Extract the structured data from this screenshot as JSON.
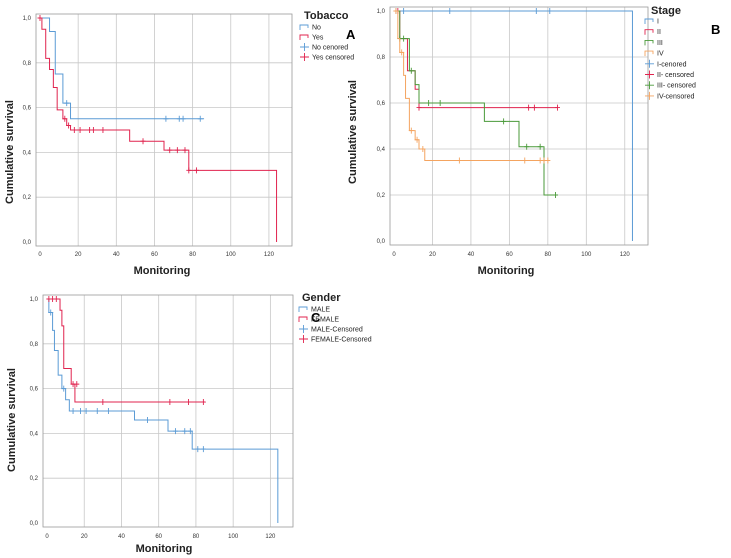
{
  "chart_data": [
    {
      "id": "A",
      "type": "line",
      "panel_label": "A",
      "title": "",
      "xlabel": "Monitoring",
      "ylabel": "Cumulative survival",
      "xlim": [
        0,
        130
      ],
      "ylim": [
        0,
        1
      ],
      "x_ticks": [
        0,
        20,
        40,
        60,
        80,
        100,
        120
      ],
      "y_ticks": [
        "0,0",
        "0,2",
        "0,4",
        "0,6",
        "0,8",
        "1,0"
      ],
      "legend_title": "Tobacco",
      "legend_position": "top-right",
      "legend": [
        {
          "label": "No",
          "color": "#5B9BD5",
          "mark": "step"
        },
        {
          "label": "Yes",
          "color": "#E0234E",
          "mark": "step"
        },
        {
          "label": "No cenored",
          "color": "#5B9BD5",
          "mark": "plus"
        },
        {
          "label": "Yes censored",
          "color": "#E0234E",
          "mark": "plus"
        }
      ],
      "series": [
        {
          "name": "No",
          "color": "#5B9BD5",
          "steps": [
            [
              0,
              1.0
            ],
            [
              5,
              0.94
            ],
            [
              8,
              0.75
            ],
            [
              12,
              0.62
            ],
            [
              16,
              0.55
            ],
            [
              86,
              0.55
            ]
          ],
          "censored": [
            [
              14,
              0.62
            ],
            [
              66,
              0.55
            ],
            [
              73,
              0.55
            ],
            [
              75,
              0.55
            ],
            [
              84,
              0.55
            ]
          ]
        },
        {
          "name": "Yes",
          "color": "#E0234E",
          "steps": [
            [
              0,
              1.0
            ],
            [
              1,
              0.95
            ],
            [
              3,
              0.82
            ],
            [
              5,
              0.77
            ],
            [
              7,
              0.69
            ],
            [
              9,
              0.59
            ],
            [
              12,
              0.55
            ],
            [
              14,
              0.52
            ],
            [
              16,
              0.5
            ],
            [
              47,
              0.45
            ],
            [
              60,
              0.45
            ],
            [
              65,
              0.41
            ],
            [
              78,
              0.32
            ],
            [
              124,
              0.0
            ]
          ],
          "censored": [
            [
              0,
              1.0
            ],
            [
              13,
              0.55
            ],
            [
              15,
              0.52
            ],
            [
              18,
              0.5
            ],
            [
              21,
              0.5
            ],
            [
              26,
              0.5
            ],
            [
              28,
              0.5
            ],
            [
              33,
              0.5
            ],
            [
              54,
              0.45
            ],
            [
              68,
              0.41
            ],
            [
              72,
              0.41
            ],
            [
              76,
              0.41
            ],
            [
              78,
              0.32
            ],
            [
              82,
              0.32
            ]
          ]
        }
      ]
    },
    {
      "id": "B",
      "type": "line",
      "panel_label": "B",
      "title": "",
      "xlabel": "Monitoring",
      "ylabel": "Cumulative survival",
      "xlim": [
        0,
        130
      ],
      "ylim": [
        0,
        1
      ],
      "x_ticks": [
        0,
        20,
        40,
        60,
        80,
        100,
        120
      ],
      "y_ticks": [
        "0,0",
        "0,2",
        "0,4",
        "0,6",
        "0,8",
        "1,0"
      ],
      "legend_title": "Stage",
      "legend_position": "top-right",
      "legend": [
        {
          "label": "I",
          "color": "#5B9BD5",
          "mark": "step"
        },
        {
          "label": "II",
          "color": "#E0234E",
          "mark": "step"
        },
        {
          "label": "III",
          "color": "#4A9A3A",
          "mark": "step"
        },
        {
          "label": "IV",
          "color": "#F4A460",
          "mark": "step"
        },
        {
          "label": "I-cenored",
          "color": "#5B9BD5",
          "mark": "plus"
        },
        {
          "label": "II- censored",
          "color": "#E0234E",
          "mark": "plus"
        },
        {
          "label": "III- censored",
          "color": "#4A9A3A",
          "mark": "plus"
        },
        {
          "label": "IV-censored",
          "color": "#F4A460",
          "mark": "plus"
        }
      ],
      "series": [
        {
          "name": "I",
          "color": "#5B9BD5",
          "steps": [
            [
              0,
              1.0
            ],
            [
              124,
              0.0
            ]
          ],
          "censored": [
            [
              1,
              1.0
            ],
            [
              5,
              1.0
            ],
            [
              29,
              1.0
            ],
            [
              74,
              1.0
            ],
            [
              81,
              1.0
            ]
          ]
        },
        {
          "name": "II",
          "color": "#E0234E",
          "steps": [
            [
              0,
              1.0
            ],
            [
              3,
              0.88
            ],
            [
              7,
              0.74
            ],
            [
              11,
              0.66
            ],
            [
              13,
              0.58
            ],
            [
              85,
              0.58
            ]
          ],
          "censored": [
            [
              2,
              1.0
            ],
            [
              13,
              0.58
            ],
            [
              70,
              0.58
            ],
            [
              73,
              0.58
            ],
            [
              85,
              0.58
            ]
          ]
        },
        {
          "name": "III",
          "color": "#4A9A3A",
          "steps": [
            [
              0,
              1.0
            ],
            [
              3,
              0.88
            ],
            [
              8,
              0.74
            ],
            [
              11,
              0.68
            ],
            [
              13,
              0.6
            ],
            [
              47,
              0.52
            ],
            [
              65,
              0.41
            ],
            [
              78,
              0.2
            ],
            [
              85,
              0.2
            ]
          ],
          "censored": [
            [
              3,
              0.88
            ],
            [
              5,
              0.88
            ],
            [
              9,
              0.74
            ],
            [
              18,
              0.6
            ],
            [
              24,
              0.6
            ],
            [
              57,
              0.52
            ],
            [
              69,
              0.41
            ],
            [
              76,
              0.41
            ],
            [
              84,
              0.2
            ]
          ]
        },
        {
          "name": "IV",
          "color": "#F4A460",
          "steps": [
            [
              0,
              1.0
            ],
            [
              2,
              0.88
            ],
            [
              3,
              0.82
            ],
            [
              5,
              0.72
            ],
            [
              6,
              0.62
            ],
            [
              8,
              0.48
            ],
            [
              11,
              0.44
            ],
            [
              13,
              0.4
            ],
            [
              16,
              0.35
            ],
            [
              81,
              0.35
            ]
          ],
          "censored": [
            [
              1,
              1.0
            ],
            [
              4,
              0.82
            ],
            [
              9,
              0.48
            ],
            [
              12,
              0.44
            ],
            [
              15,
              0.4
            ],
            [
              34,
              0.35
            ],
            [
              68,
              0.35
            ],
            [
              76,
              0.35
            ],
            [
              78,
              0.35
            ],
            [
              80,
              0.35
            ]
          ]
        }
      ]
    },
    {
      "id": "C",
      "type": "line",
      "panel_label": "C",
      "title": "",
      "xlabel": "Monitoring",
      "ylabel": "Cumulative survival",
      "xlim": [
        0,
        130
      ],
      "ylim": [
        0,
        1
      ],
      "x_ticks": [
        0,
        20,
        40,
        60,
        80,
        100,
        120
      ],
      "y_ticks": [
        "0,0",
        "0,2",
        "0,4",
        "0,6",
        "0,8",
        "1,0"
      ],
      "legend_title": "Gender",
      "legend_position": "top-right",
      "legend": [
        {
          "label": "MALE",
          "color": "#5B9BD5",
          "mark": "step"
        },
        {
          "label": "FEMALE",
          "color": "#E0234E",
          "mark": "step"
        },
        {
          "label": "MALE-Censored",
          "color": "#5B9BD5",
          "mark": "plus"
        },
        {
          "label": "FEMALE-Censored",
          "color": "#E0234E",
          "mark": "plus"
        }
      ],
      "series": [
        {
          "name": "MALE",
          "color": "#5B9BD5",
          "steps": [
            [
              0,
              1.0
            ],
            [
              1,
              0.94
            ],
            [
              3,
              0.86
            ],
            [
              4,
              0.77
            ],
            [
              6,
              0.66
            ],
            [
              8,
              0.6
            ],
            [
              10,
              0.55
            ],
            [
              12,
              0.5
            ],
            [
              47,
              0.46
            ],
            [
              65,
              0.41
            ],
            [
              78,
              0.33
            ],
            [
              124,
              0.0
            ]
          ],
          "censored": [
            [
              2,
              0.94
            ],
            [
              9,
              0.6
            ],
            [
              14,
              0.5
            ],
            [
              18,
              0.5
            ],
            [
              21,
              0.5
            ],
            [
              27,
              0.5
            ],
            [
              33,
              0.5
            ],
            [
              54,
              0.46
            ],
            [
              69,
              0.41
            ],
            [
              74,
              0.41
            ],
            [
              77,
              0.41
            ],
            [
              81,
              0.33
            ],
            [
              84,
              0.33
            ]
          ]
        },
        {
          "name": "FEMALE",
          "color": "#E0234E",
          "steps": [
            [
              0,
              1.0
            ],
            [
              7,
              0.95
            ],
            [
              8,
              0.88
            ],
            [
              9,
              0.69
            ],
            [
              13,
              0.62
            ],
            [
              15,
              0.54
            ],
            [
              85,
              0.54
            ]
          ],
          "censored": [
            [
              1,
              1.0
            ],
            [
              3,
              1.0
            ],
            [
              5,
              1.0
            ],
            [
              14,
              0.62
            ],
            [
              16,
              0.62
            ],
            [
              30,
              0.54
            ],
            [
              66,
              0.54
            ],
            [
              76,
              0.54
            ],
            [
              84,
              0.54
            ]
          ]
        }
      ]
    }
  ]
}
